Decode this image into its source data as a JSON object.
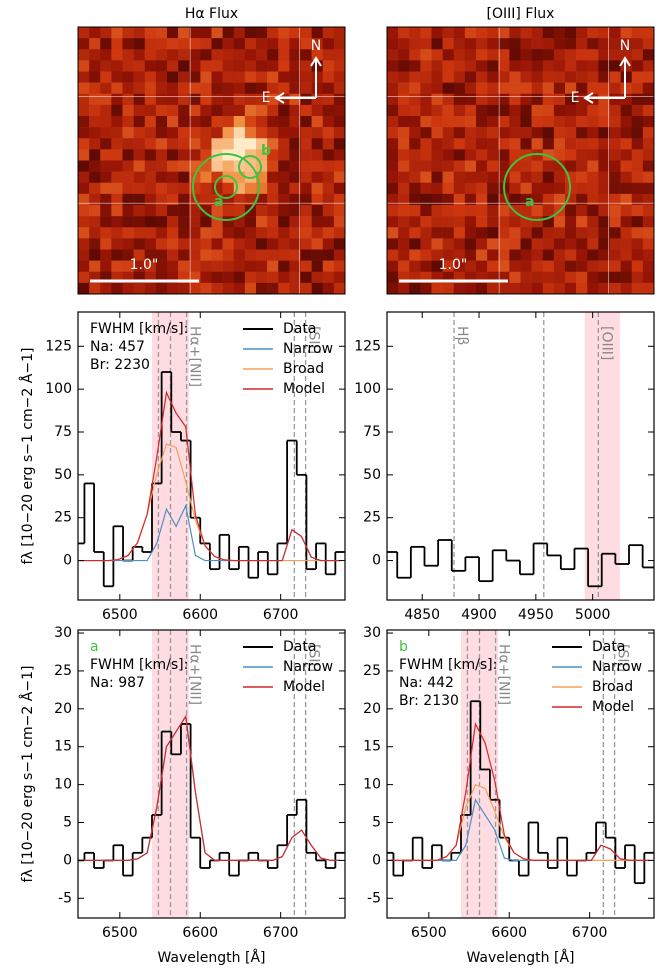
{
  "images": [
    {
      "title": "Hα Flux",
      "north": "N",
      "east": "E",
      "scale": "1.0\"",
      "apertures": [
        "a",
        "b"
      ]
    },
    {
      "title": "[OIII] Flux",
      "north": "N",
      "east": "E",
      "scale": "1.0\"",
      "apertures": [
        "a"
      ]
    }
  ],
  "chart_data": [
    {
      "type": "line",
      "ylabel": "fλ [10−20 erg s−1 cm−2 Å−1]",
      "xlim": [
        6448,
        6780
      ],
      "ylim": [
        -23,
        145
      ],
      "xticks": [
        6500,
        6600,
        6700
      ],
      "yticks": [
        0,
        25,
        50,
        75,
        100,
        125
      ],
      "fwhm_label": "FWHM [km/s]:",
      "na": "Na: 457",
      "br": "Br: 2230",
      "legend": "upper right",
      "shade": [
        6540,
        6586
      ],
      "emission_lines": [
        {
          "label": "Hα+[NII]",
          "wavelengths": [
            6548,
            6563,
            6583
          ]
        },
        {
          "label": "[SII]",
          "wavelengths": [
            6717,
            6731
          ]
        }
      ],
      "x": [
        6450,
        6462,
        6474,
        6486,
        6498,
        6510,
        6522,
        6534,
        6546,
        6558,
        6570,
        6582,
        6594,
        6606,
        6618,
        6630,
        6642,
        6654,
        6666,
        6678,
        6690,
        6702,
        6714,
        6726,
        6738,
        6750,
        6762,
        6774
      ],
      "series": [
        {
          "name": "Data",
          "color": "#000000",
          "step": true,
          "values": [
            10,
            45,
            5,
            -15,
            20,
            0,
            8,
            5,
            45,
            110,
            75,
            70,
            25,
            10,
            -5,
            15,
            -5,
            8,
            -10,
            5,
            -8,
            10,
            70,
            50,
            -5,
            10,
            -8,
            5
          ]
        },
        {
          "name": "Narrow",
          "color": "#4a90c8",
          "values": [
            0,
            0,
            0,
            0,
            0,
            0,
            0,
            0,
            10,
            30,
            20,
            32,
            3,
            0,
            0,
            0,
            0,
            0,
            0,
            0,
            0,
            0,
            18,
            14,
            2,
            0,
            0,
            0
          ]
        },
        {
          "name": "Broad",
          "color": "#f5a05a",
          "values": [
            0,
            0,
            0,
            0,
            0.6,
            2.9,
            10.4,
            27,
            50.4,
            68,
            66,
            46,
            23.5,
            8.6,
            2.3,
            0.4,
            0,
            0,
            0,
            0,
            0,
            0,
            0,
            0,
            0,
            0,
            0,
            0
          ]
        },
        {
          "name": "Model",
          "color": "#d62728",
          "values": [
            0,
            0,
            0,
            0,
            0.6,
            2.9,
            10.4,
            27,
            60.4,
            98,
            86,
            78,
            26.5,
            8.6,
            2.3,
            0.4,
            0,
            0,
            0,
            0,
            0,
            0,
            18,
            14,
            2,
            0,
            0,
            0
          ]
        }
      ]
    },
    {
      "type": "line",
      "xlim": [
        4819,
        5054
      ],
      "ylim": [
        -23,
        145
      ],
      "xticks": [
        4850,
        4900,
        4950,
        5000
      ],
      "yticks": [
        0,
        25,
        50,
        75,
        100,
        125
      ],
      "shade": [
        4993,
        5024
      ],
      "emission_lines": [
        {
          "label": "Hβ",
          "wavelengths": [
            4878
          ]
        },
        {
          "label": "[OIII]",
          "wavelengths": [
            4957,
            5005
          ]
        }
      ],
      "x": [
        4822,
        4834,
        4846,
        4858,
        4870,
        4882,
        4894,
        4906,
        4918,
        4930,
        4942,
        4954,
        4966,
        4978,
        4990,
        5002,
        5014,
        5026,
        5038,
        5050
      ],
      "series": [
        {
          "name": "Data",
          "color": "#000000",
          "step": true,
          "values": [
            5,
            -10,
            8,
            -3,
            12,
            -6,
            2,
            -12,
            6,
            0,
            -8,
            10,
            3,
            -5,
            7,
            -15,
            4,
            -2,
            9,
            -4
          ]
        }
      ]
    },
    {
      "type": "line",
      "ylabel": "fλ [10−20 erg s−1 cm−2 Å−1]",
      "xlabel": "Wavelength [Å]",
      "xlim": [
        6448,
        6780
      ],
      "ylim": [
        -7.6,
        30.4
      ],
      "xticks": [
        6500,
        6600,
        6700
      ],
      "yticks": [
        -5,
        0,
        5,
        10,
        15,
        20,
        25,
        30
      ],
      "tag": "a",
      "fwhm_label": "FWHM [km/s]:",
      "na": "Na: 987",
      "legend": "upper right",
      "shade": [
        6540,
        6586
      ],
      "emission_lines": [
        {
          "label": "Hα+[NII]",
          "wavelengths": [
            6548,
            6563,
            6583
          ]
        },
        {
          "label": "[SII]",
          "wavelengths": [
            6717,
            6731
          ]
        }
      ],
      "x": [
        6450,
        6462,
        6474,
        6486,
        6498,
        6510,
        6522,
        6534,
        6546,
        6558,
        6570,
        6582,
        6594,
        6606,
        6618,
        6630,
        6642,
        6654,
        6666,
        6678,
        6690,
        6702,
        6714,
        6726,
        6738,
        6750,
        6762,
        6774
      ],
      "series": [
        {
          "name": "Data",
          "color": "#000000",
          "step": true,
          "values": [
            0,
            1,
            -1,
            0,
            2,
            -2,
            1,
            3,
            6,
            17,
            14,
            18,
            3,
            -1,
            0,
            1,
            -2,
            0,
            1,
            0,
            -1,
            2,
            6,
            8,
            1,
            0,
            -1,
            1
          ]
        },
        {
          "name": "Narrow",
          "color": "#4a90c8",
          "values": [
            0,
            0,
            0,
            0,
            0,
            0,
            0.2,
            1,
            7,
            15,
            17,
            19,
            9,
            1,
            0,
            0,
            0,
            0,
            0,
            0,
            0,
            0.5,
            3,
            4,
            2,
            0.3,
            0,
            0
          ]
        },
        {
          "name": "Model",
          "color": "#d62728",
          "values": [
            0,
            0,
            0,
            0,
            0,
            0,
            0.2,
            1,
            7,
            15,
            17,
            19,
            9,
            1,
            0,
            0,
            0,
            0,
            0,
            0,
            0,
            0.5,
            3,
            4,
            2,
            0.3,
            0,
            0
          ]
        }
      ]
    },
    {
      "type": "line",
      "xlabel": "Wavelength [Å]",
      "xlim": [
        6448,
        6780
      ],
      "ylim": [
        -7.6,
        30.4
      ],
      "xticks": [
        6500,
        6600,
        6700
      ],
      "yticks": [
        -5,
        0,
        5,
        10,
        15,
        20,
        25,
        30
      ],
      "tag": "b",
      "fwhm_label": "FWHM [km/s]:",
      "na": "Na: 442",
      "br": "Br: 2130",
      "legend": "upper right",
      "shade": [
        6540,
        6586
      ],
      "emission_lines": [
        {
          "label": "Hα+[NII]",
          "wavelengths": [
            6548,
            6563,
            6583
          ]
        },
        {
          "label": "[SII]",
          "wavelengths": [
            6717,
            6731
          ]
        }
      ],
      "x": [
        6450,
        6462,
        6474,
        6486,
        6498,
        6510,
        6522,
        6534,
        6546,
        6558,
        6570,
        6582,
        6594,
        6606,
        6618,
        6630,
        6642,
        6654,
        6666,
        6678,
        6690,
        6702,
        6714,
        6726,
        6738,
        6750,
        6762,
        6774
      ],
      "series": [
        {
          "name": "Data",
          "color": "#000000",
          "step": true,
          "values": [
            1,
            -2,
            0,
            3,
            -1,
            2,
            0,
            1,
            6,
            21,
            12,
            8,
            3,
            0,
            -2,
            5,
            1,
            -1,
            3,
            -2,
            0,
            1,
            5,
            3,
            -1,
            2,
            -3,
            1
          ]
        },
        {
          "name": "Narrow",
          "color": "#4a90c8",
          "values": [
            0,
            0,
            0,
            0,
            0,
            0,
            0,
            0,
            2,
            8,
            6,
            4,
            0.3,
            0,
            0,
            0,
            0,
            0,
            0,
            0,
            0,
            0,
            2,
            1.5,
            0.2,
            0,
            0,
            0
          ]
        },
        {
          "name": "Broad",
          "color": "#f5a05a",
          "values": [
            0,
            0,
            0,
            0,
            0,
            0,
            0.5,
            2,
            7,
            10,
            9.5,
            6.5,
            3,
            1,
            0.2,
            0,
            0,
            0,
            0,
            0,
            0,
            0,
            0,
            0,
            0,
            0,
            0,
            0
          ]
        },
        {
          "name": "Model",
          "color": "#d62728",
          "values": [
            0,
            0,
            0,
            0,
            0,
            0,
            0.5,
            2,
            9,
            18,
            15.5,
            10.5,
            3.3,
            1,
            0.2,
            0,
            0,
            0,
            0,
            0,
            0,
            0,
            2,
            1.5,
            0.2,
            0,
            0,
            0
          ]
        }
      ]
    }
  ]
}
